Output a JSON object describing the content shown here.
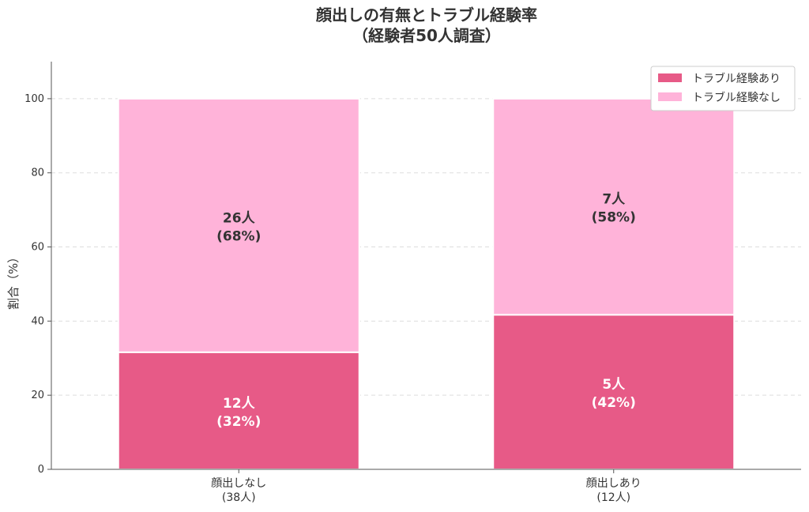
{
  "chart_data": {
    "type": "bar",
    "stacked": true,
    "title_lines": [
      "顔出しの有無とトラブル経験率",
      "（経験者50人調査）"
    ],
    "ylabel": "割合（%）",
    "ylim": [
      0,
      110
    ],
    "yticks": [
      0,
      20,
      40,
      60,
      80,
      100
    ],
    "grid": true,
    "legend_position": "top-right",
    "categories": [
      {
        "line1": "顔出しなし",
        "line2": "(38人)"
      },
      {
        "line1": "顔出しあり",
        "line2": "(12人)"
      }
    ],
    "series": [
      {
        "name": "トラブル経験あり",
        "color": "#e75a87",
        "label_color": "#ffffff",
        "values": [
          31.6,
          41.7
        ],
        "labels": [
          {
            "line1": "12人",
            "line2": "(32%)"
          },
          {
            "line1": "5人",
            "line2": "(42%)"
          }
        ]
      },
      {
        "name": "トラブル経験なし",
        "color": "#ffb3d9",
        "label_color": "#333333",
        "values": [
          68.4,
          58.3
        ],
        "labels": [
          {
            "line1": "26人",
            "line2": "(68%)"
          },
          {
            "line1": "7人",
            "line2": "(58%)"
          }
        ]
      }
    ]
  }
}
